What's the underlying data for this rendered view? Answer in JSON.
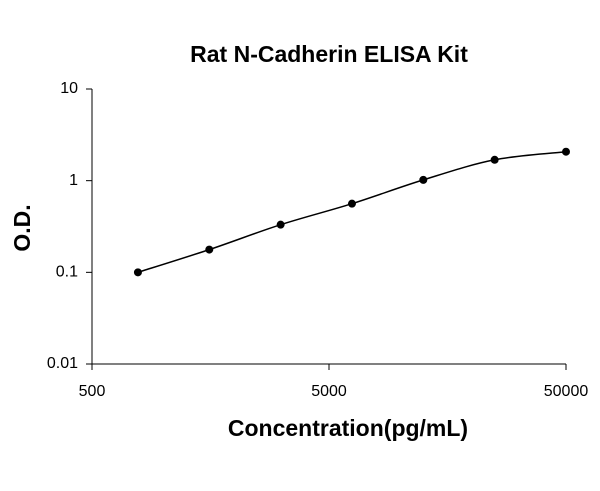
{
  "chart_data": {
    "type": "scatter",
    "title": "Rat N-Cadherin ELISA Kit",
    "x_label": "Concentration(pg/mL)",
    "y_label": "O.D.",
    "x": [
      781.25,
      1562.5,
      3125,
      6250,
      12500,
      25000,
      50000
    ],
    "values": [
      0.1,
      0.177,
      0.331,
      0.561,
      1.02,
      1.69,
      2.07
    ],
    "color": "#000000",
    "xlim": [
      500,
      50000
    ],
    "xticks": [
      500,
      5000,
      50000
    ],
    "log_x": true,
    "ylim": [
      0.01,
      10
    ],
    "yticks": [
      0.01,
      0.1,
      1,
      10
    ],
    "log_y": true
  }
}
